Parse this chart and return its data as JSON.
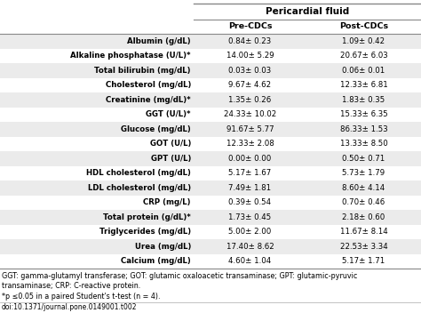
{
  "title": "Pericardial fluid",
  "col_headers": [
    "Pre-CDCs",
    "Post-CDCs"
  ],
  "rows": [
    [
      "Albumin (g/dL)",
      "0.84± 0.23",
      "1.09± 0.42"
    ],
    [
      "Alkaline phosphatase (U/L)*",
      "14.00± 5.29",
      "20.67± 6.03"
    ],
    [
      "Total bilirubin (mg/dL)",
      "0.03± 0.03",
      "0.06± 0.01"
    ],
    [
      "Cholesterol (mg/dL)",
      "9.67± 4.62",
      "12.33± 6.81"
    ],
    [
      "Creatinine (mg/dL)*",
      "1.35± 0.26",
      "1.83± 0.35"
    ],
    [
      "GGT (U/L)*",
      "24.33± 10.02",
      "15.33± 6.35"
    ],
    [
      "Glucose (mg/dL)",
      "91.67± 5.77",
      "86.33± 1.53"
    ],
    [
      "GOT (U/L)",
      "12.33± 2.08",
      "13.33± 8.50"
    ],
    [
      "GPT (U/L)",
      "0.00± 0.00",
      "0.50± 0.71"
    ],
    [
      "HDL cholesterol (mg/dL)",
      "5.17± 1.67",
      "5.73± 1.79"
    ],
    [
      "LDL cholesterol (mg/dL)",
      "7.49± 1.81",
      "8.60± 4.14"
    ],
    [
      "CRP (mg/L)",
      "0.39± 0.54",
      "0.70± 0.46"
    ],
    [
      "Total protein (g/dL)*",
      "1.73± 0.45",
      "2.18± 0.60"
    ],
    [
      "Triglycerides (mg/dL)",
      "5.00± 2.00",
      "11.67± 8.14"
    ],
    [
      "Urea (mg/dL)",
      "17.40± 8.62",
      "22.53± 3.34"
    ],
    [
      "Calcium (mg/dL)",
      "4.60± 1.04",
      "5.17± 1.71"
    ]
  ],
  "footnote_lines": [
    [
      "GGT: gamma-glutamyl transferase; GOT: glutamic oxaloacetic transaminase; GPT: glutamic-pyruvic",
      "normal",
      5.8
    ],
    [
      "transaminase; CRP: C-reactive protein.",
      "normal",
      5.8
    ],
    [
      "*p ≤0.05 in a paired Student's t-test (n = 4).",
      "normal",
      5.8
    ],
    [
      "doi:10.1371/journal.pone.0149001.t002",
      "normal",
      5.5
    ]
  ],
  "shaded_rows": [
    0,
    2,
    4,
    6,
    8,
    10,
    12,
    14
  ],
  "shade_color": "#ebebeb",
  "border_color": "#888888",
  "line_color": "#aaaaaa"
}
